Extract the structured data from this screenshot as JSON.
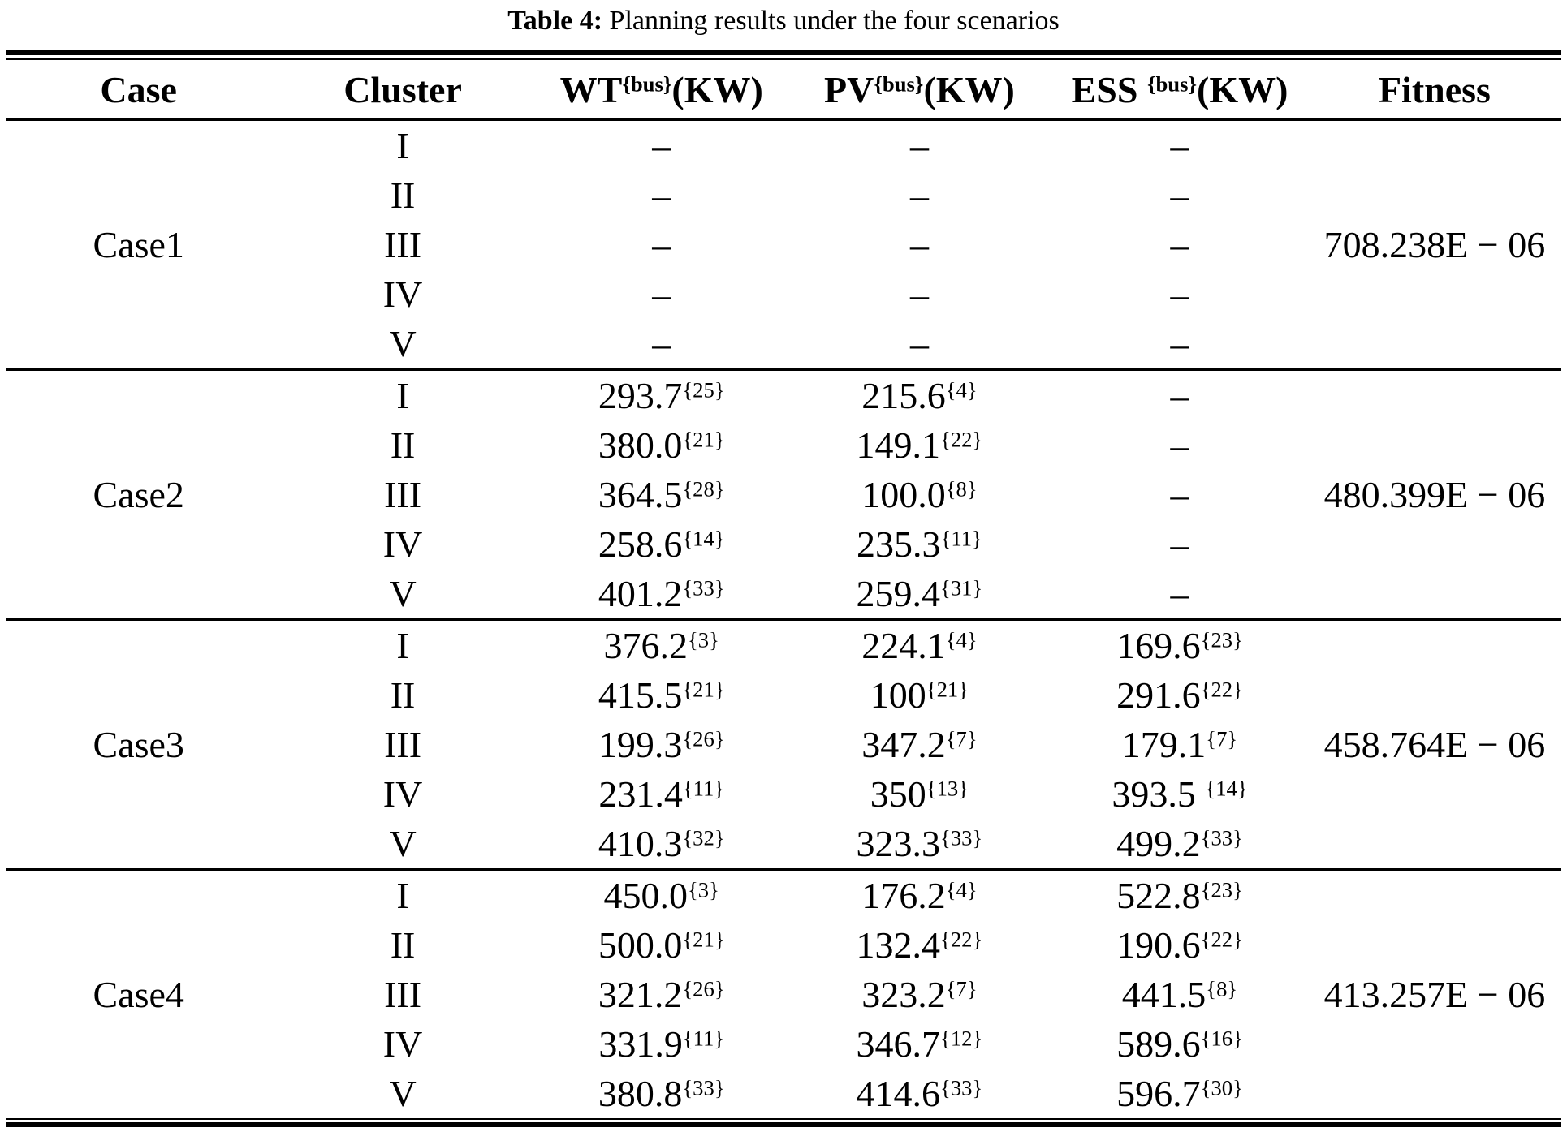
{
  "title": {
    "label": "Table 4:",
    "text": " Planning results under the four scenarios"
  },
  "table": {
    "columns": [
      {
        "label": "Case"
      },
      {
        "label": "Cluster"
      },
      {
        "pre": "WT",
        "sup": "{bus}",
        "post": "(KW)"
      },
      {
        "pre": "PV",
        "sup": "{bus}",
        "post": "(KW)"
      },
      {
        "pre": "ESS ",
        "sup": "{bus}",
        "post": "(KW)"
      },
      {
        "label": "Fitness"
      }
    ],
    "sections": [
      {
        "case": "Case1",
        "fitness": "708.238E − 06",
        "rows": [
          {
            "cluster": "I",
            "wt": "–",
            "wt_sup": "",
            "pv": "–",
            "pv_sup": "",
            "ess": "–",
            "ess_sup": ""
          },
          {
            "cluster": "II",
            "wt": "–",
            "wt_sup": "",
            "pv": "–",
            "pv_sup": "",
            "ess": "–",
            "ess_sup": ""
          },
          {
            "cluster": "III",
            "wt": "–",
            "wt_sup": "",
            "pv": "–",
            "pv_sup": "",
            "ess": "–",
            "ess_sup": ""
          },
          {
            "cluster": "IV",
            "wt": "–",
            "wt_sup": "",
            "pv": "–",
            "pv_sup": "",
            "ess": "–",
            "ess_sup": ""
          },
          {
            "cluster": "V",
            "wt": "–",
            "wt_sup": "",
            "pv": "–",
            "pv_sup": "",
            "ess": "–",
            "ess_sup": ""
          }
        ]
      },
      {
        "case": "Case2",
        "fitness": "480.399E − 06",
        "rows": [
          {
            "cluster": "I",
            "wt": "293.7",
            "wt_sup": "{25}",
            "pv": "215.6",
            "pv_sup": "{4}",
            "ess": "–",
            "ess_sup": ""
          },
          {
            "cluster": "II",
            "wt": "380.0",
            "wt_sup": "{21}",
            "pv": "149.1",
            "pv_sup": "{22}",
            "ess": "–",
            "ess_sup": ""
          },
          {
            "cluster": "III",
            "wt": "364.5",
            "wt_sup": "{28}",
            "pv": "100.0",
            "pv_sup": "{8}",
            "ess": "–",
            "ess_sup": ""
          },
          {
            "cluster": "IV",
            "wt": "258.6",
            "wt_sup": "{14}",
            "pv": "235.3",
            "pv_sup": "{11}",
            "ess": "–",
            "ess_sup": ""
          },
          {
            "cluster": "V",
            "wt": "401.2",
            "wt_sup": "{33}",
            "pv": "259.4",
            "pv_sup": "{31}",
            "ess": "–",
            "ess_sup": ""
          }
        ]
      },
      {
        "case": "Case3",
        "fitness": "458.764E − 06",
        "rows": [
          {
            "cluster": "I",
            "wt": "376.2",
            "wt_sup": "{3}",
            "pv": "224.1",
            "pv_sup": "{4}",
            "ess": "169.6",
            "ess_sup": "{23}"
          },
          {
            "cluster": "II",
            "wt": "415.5",
            "wt_sup": "{21}",
            "pv": "100",
            "pv_sup": "{21}",
            "ess": "291.6",
            "ess_sup": "{22}"
          },
          {
            "cluster": "III",
            "wt": "199.3",
            "wt_sup": "{26}",
            "pv": "347.2",
            "pv_sup": "{7}",
            "ess": "179.1",
            "ess_sup": "{7}"
          },
          {
            "cluster": "IV",
            "wt": "231.4",
            "wt_sup": "{11}",
            "pv": "350",
            "pv_sup": "{13}",
            "ess": "393.5 ",
            "ess_sup": "{14}"
          },
          {
            "cluster": "V",
            "wt": "410.3",
            "wt_sup": "{32}",
            "pv": "323.3",
            "pv_sup": "{33}",
            "ess": "499.2",
            "ess_sup": "{33}"
          }
        ]
      },
      {
        "case": "Case4",
        "fitness": "413.257E − 06",
        "rows": [
          {
            "cluster": "I",
            "wt": "450.0",
            "wt_sup": "{3}",
            "pv": "176.2",
            "pv_sup": "{4}",
            "ess": "522.8",
            "ess_sup": "{23}"
          },
          {
            "cluster": "II",
            "wt": "500.0",
            "wt_sup": "{21}",
            "pv": "132.4",
            "pv_sup": "{22}",
            "ess": "190.6",
            "ess_sup": "{22}"
          },
          {
            "cluster": "III",
            "wt": "321.2",
            "wt_sup": "{26}",
            "pv": "323.2",
            "pv_sup": "{7}",
            "ess": "441.5",
            "ess_sup": "{8}"
          },
          {
            "cluster": "IV",
            "wt": "331.9",
            "wt_sup": "{11}",
            "pv": "346.7",
            "pv_sup": "{12}",
            "ess": "589.6",
            "ess_sup": "{16}"
          },
          {
            "cluster": "V",
            "wt": "380.8",
            "wt_sup": "{33}",
            "pv": "414.6",
            "pv_sup": "{33}",
            "ess": "596.7",
            "ess_sup": "{30}"
          }
        ]
      }
    ]
  }
}
